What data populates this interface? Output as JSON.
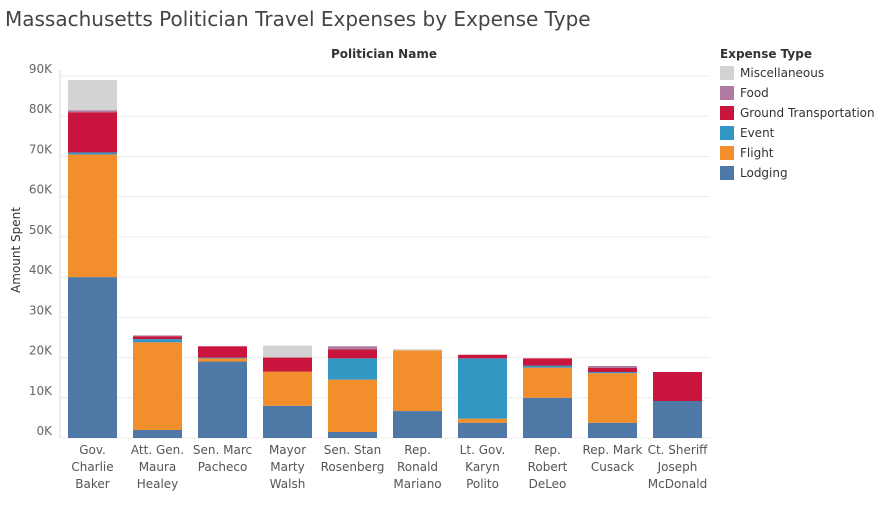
{
  "title": "Massachusetts Politician Travel Expenses by Expense Type",
  "chart_data": {
    "type": "bar",
    "stacked": true,
    "column_header": "Politician Name",
    "ylabel": "Amount Spent",
    "ylim": [
      0,
      90000
    ],
    "yticks": [
      0,
      10000,
      20000,
      30000,
      40000,
      50000,
      60000,
      70000,
      80000,
      90000
    ],
    "ytick_labels": [
      "0K",
      "10K",
      "20K",
      "30K",
      "40K",
      "50K",
      "60K",
      "70K",
      "80K",
      "90K"
    ],
    "grid": true,
    "legend_title": "Expense Type",
    "legend_position": "right",
    "categories": [
      [
        "Gov.",
        "Charlie",
        "Baker"
      ],
      [
        "Att. Gen.",
        "Maura",
        "Healey"
      ],
      [
        "Sen. Marc",
        "Pacheco"
      ],
      [
        "Mayor",
        "Marty",
        "Walsh"
      ],
      [
        "Sen. Stan",
        "Rosenberg"
      ],
      [
        "Rep.",
        "Ronald",
        "Mariano"
      ],
      [
        "Lt. Gov.",
        "Karyn",
        "Polito"
      ],
      [
        "Rep.",
        "Robert",
        "DeLeo"
      ],
      [
        "Rep. Mark",
        "Cusack"
      ],
      [
        "Ct. Sheriff",
        "Joseph",
        "McDonald"
      ]
    ],
    "series": [
      {
        "name": "Lodging",
        "color": "#4e79a7",
        "values": [
          40000,
          2000,
          19000,
          8000,
          1500,
          6700,
          3800,
          10000,
          3800,
          9200
        ]
      },
      {
        "name": "Flight",
        "color": "#f28e2b",
        "values": [
          30500,
          21800,
          800,
          8500,
          13000,
          15100,
          1000,
          7500,
          12300,
          0
        ]
      },
      {
        "name": "Event",
        "color": "#3397c4",
        "values": [
          500,
          800,
          200,
          0,
          5300,
          0,
          15000,
          500,
          300,
          0
        ]
      },
      {
        "name": "Ground Transportation",
        "color": "#c9153d",
        "values": [
          10000,
          700,
          2800,
          3500,
          2200,
          0,
          900,
          1800,
          1000,
          7200
        ]
      },
      {
        "name": "Food",
        "color": "#b07aa1",
        "values": [
          500,
          200,
          0,
          0,
          800,
          0,
          0,
          0,
          500,
          0
        ]
      },
      {
        "name": "Miscellaneous",
        "color": "#d3d3d3",
        "values": [
          7500,
          0,
          0,
          3000,
          0,
          300,
          0,
          0,
          0,
          0
        ]
      }
    ],
    "legend_order": [
      "Miscellaneous",
      "Food",
      "Ground Transportation",
      "Event",
      "Flight",
      "Lodging"
    ]
  }
}
